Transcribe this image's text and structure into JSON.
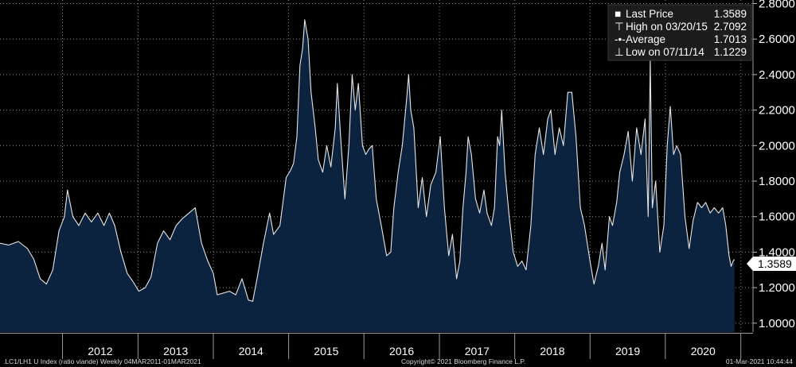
{
  "chart_data": {
    "type": "area",
    "x_start": "2011-03-04",
    "x_end": "2021-03-01",
    "ylim": [
      0.95,
      2.82
    ],
    "grid": true,
    "y_ticks": [
      "1.0000",
      "1.2000",
      "1.4000",
      "1.6000",
      "1.8000",
      "2.0000",
      "2.2000",
      "2.4000",
      "2.6000",
      "2.8000"
    ],
    "x_ticks": [
      "2012",
      "2013",
      "2014",
      "2015",
      "2016",
      "2017",
      "2018",
      "2019",
      "2020"
    ],
    "series": [
      {
        "values": [
          [
            "2011-03-04",
            1.45
          ],
          [
            "2011-04-15",
            1.44
          ],
          [
            "2011-06-01",
            1.46
          ],
          [
            "2011-07-15",
            1.42
          ],
          [
            "2011-08-15",
            1.36
          ],
          [
            "2011-09-15",
            1.25
          ],
          [
            "2011-10-15",
            1.22
          ],
          [
            "2011-11-15",
            1.3
          ],
          [
            "2011-12-15",
            1.52
          ],
          [
            "2012-01-10",
            1.6
          ],
          [
            "2012-01-25",
            1.75
          ],
          [
            "2012-02-20",
            1.6
          ],
          [
            "2012-03-20",
            1.55
          ],
          [
            "2012-04-20",
            1.62
          ],
          [
            "2012-05-20",
            1.57
          ],
          [
            "2012-06-20",
            1.62
          ],
          [
            "2012-07-20",
            1.55
          ],
          [
            "2012-08-15",
            1.62
          ],
          [
            "2012-09-10",
            1.55
          ],
          [
            "2012-10-10",
            1.4
          ],
          [
            "2012-11-10",
            1.28
          ],
          [
            "2012-12-10",
            1.23
          ],
          [
            "2013-01-05",
            1.18
          ],
          [
            "2013-02-05",
            1.2
          ],
          [
            "2013-03-05",
            1.26
          ],
          [
            "2013-04-05",
            1.45
          ],
          [
            "2013-05-05",
            1.52
          ],
          [
            "2013-06-05",
            1.47
          ],
          [
            "2013-07-05",
            1.55
          ],
          [
            "2013-08-05",
            1.59
          ],
          [
            "2013-09-05",
            1.62
          ],
          [
            "2013-10-05",
            1.65
          ],
          [
            "2013-11-05",
            1.45
          ],
          [
            "2013-12-05",
            1.35
          ],
          [
            "2014-01-01",
            1.28
          ],
          [
            "2014-01-20",
            1.16
          ],
          [
            "2014-02-20",
            1.17
          ],
          [
            "2014-03-20",
            1.18
          ],
          [
            "2014-04-20",
            1.16
          ],
          [
            "2014-05-20",
            1.25
          ],
          [
            "2014-06-20",
            1.13
          ],
          [
            "2014-07-11",
            1.1229
          ],
          [
            "2014-08-01",
            1.25
          ],
          [
            "2014-09-01",
            1.45
          ],
          [
            "2014-10-01",
            1.62
          ],
          [
            "2014-10-20",
            1.5
          ],
          [
            "2014-11-20",
            1.55
          ],
          [
            "2014-12-20",
            1.82
          ],
          [
            "2015-01-10",
            1.86
          ],
          [
            "2015-01-25",
            1.9
          ],
          [
            "2015-02-10",
            2.05
          ],
          [
            "2015-02-25",
            2.45
          ],
          [
            "2015-03-10",
            2.55
          ],
          [
            "2015-03-20",
            2.7092
          ],
          [
            "2015-04-05",
            2.6
          ],
          [
            "2015-04-20",
            2.3
          ],
          [
            "2015-05-10",
            2.1
          ],
          [
            "2015-05-25",
            1.92
          ],
          [
            "2015-06-15",
            1.85
          ],
          [
            "2015-07-05",
            2.0
          ],
          [
            "2015-07-25",
            1.88
          ],
          [
            "2015-08-15",
            2.1
          ],
          [
            "2015-08-25",
            2.35
          ],
          [
            "2015-09-10",
            2.05
          ],
          [
            "2015-10-01",
            1.7
          ],
          [
            "2015-10-20",
            2.0
          ],
          [
            "2015-11-05",
            2.4
          ],
          [
            "2015-11-20",
            2.2
          ],
          [
            "2015-12-05",
            2.35
          ],
          [
            "2015-12-25",
            2.0
          ],
          [
            "2016-01-10",
            1.95
          ],
          [
            "2016-01-25",
            1.98
          ],
          [
            "2016-02-10",
            2.0
          ],
          [
            "2016-03-01",
            1.7
          ],
          [
            "2016-03-25",
            1.55
          ],
          [
            "2016-04-20",
            1.38
          ],
          [
            "2016-05-10",
            1.4
          ],
          [
            "2016-05-25",
            1.65
          ],
          [
            "2016-06-15",
            1.85
          ],
          [
            "2016-07-05",
            2.0
          ],
          [
            "2016-07-25",
            2.25
          ],
          [
            "2016-08-05",
            2.4
          ],
          [
            "2016-08-15",
            2.2
          ],
          [
            "2016-08-30",
            2.1
          ],
          [
            "2016-09-20",
            1.65
          ],
          [
            "2016-10-10",
            1.82
          ],
          [
            "2016-10-30",
            1.6
          ],
          [
            "2016-11-20",
            1.78
          ],
          [
            "2016-12-15",
            1.85
          ],
          [
            "2017-01-05",
            2.05
          ],
          [
            "2017-01-25",
            1.65
          ],
          [
            "2017-02-15",
            1.38
          ],
          [
            "2017-03-05",
            1.5
          ],
          [
            "2017-03-25",
            1.25
          ],
          [
            "2017-04-10",
            1.35
          ],
          [
            "2017-04-25",
            1.65
          ],
          [
            "2017-05-10",
            1.85
          ],
          [
            "2017-05-20",
            2.05
          ],
          [
            "2017-06-05",
            1.95
          ],
          [
            "2017-06-25",
            1.7
          ],
          [
            "2017-07-15",
            1.62
          ],
          [
            "2017-08-05",
            1.75
          ],
          [
            "2017-08-20",
            1.62
          ],
          [
            "2017-09-10",
            1.55
          ],
          [
            "2017-09-25",
            1.65
          ],
          [
            "2017-10-10",
            2.05
          ],
          [
            "2017-10-20",
            2.0
          ],
          [
            "2017-10-30",
            2.2
          ],
          [
            "2017-11-15",
            1.85
          ],
          [
            "2017-12-05",
            1.6
          ],
          [
            "2017-12-25",
            1.4
          ],
          [
            "2018-01-15",
            1.32
          ],
          [
            "2018-02-05",
            1.35
          ],
          [
            "2018-02-25",
            1.3
          ],
          [
            "2018-03-20",
            1.55
          ],
          [
            "2018-04-10",
            1.95
          ],
          [
            "2018-04-30",
            2.1
          ],
          [
            "2018-05-20",
            1.95
          ],
          [
            "2018-06-10",
            2.15
          ],
          [
            "2018-06-25",
            2.2
          ],
          [
            "2018-07-15",
            1.95
          ],
          [
            "2018-08-05",
            2.1
          ],
          [
            "2018-08-25",
            2.0
          ],
          [
            "2018-09-15",
            2.3
          ],
          [
            "2018-10-05",
            2.3
          ],
          [
            "2018-10-25",
            2.05
          ],
          [
            "2018-11-15",
            1.65
          ],
          [
            "2018-12-05",
            1.55
          ],
          [
            "2019-01-01",
            1.35
          ],
          [
            "2019-01-20",
            1.22
          ],
          [
            "2019-02-10",
            1.32
          ],
          [
            "2019-02-28",
            1.45
          ],
          [
            "2019-03-15",
            1.3
          ],
          [
            "2019-04-05",
            1.6
          ],
          [
            "2019-04-20",
            1.55
          ],
          [
            "2019-05-10",
            1.68
          ],
          [
            "2019-05-25",
            1.85
          ],
          [
            "2019-06-15",
            1.95
          ],
          [
            "2019-07-05",
            2.08
          ],
          [
            "2019-07-25",
            1.8
          ],
          [
            "2019-08-15",
            2.1
          ],
          [
            "2019-09-05",
            1.95
          ],
          [
            "2019-09-25",
            2.15
          ],
          [
            "2019-10-10",
            1.6
          ],
          [
            "2019-10-20",
            2.48
          ],
          [
            "2019-10-30",
            1.65
          ],
          [
            "2019-11-15",
            1.8
          ],
          [
            "2019-12-05",
            1.4
          ],
          [
            "2019-12-25",
            1.55
          ],
          [
            "2020-01-10",
            2.0
          ],
          [
            "2020-01-25",
            2.22
          ],
          [
            "2020-02-10",
            1.95
          ],
          [
            "2020-02-25",
            2.0
          ],
          [
            "2020-03-15",
            1.95
          ],
          [
            "2020-04-05",
            1.6
          ],
          [
            "2020-04-25",
            1.42
          ],
          [
            "2020-05-15",
            1.58
          ],
          [
            "2020-06-05",
            1.68
          ],
          [
            "2020-06-25",
            1.65
          ],
          [
            "2020-07-15",
            1.68
          ],
          [
            "2020-08-05",
            1.62
          ],
          [
            "2020-08-25",
            1.65
          ],
          [
            "2020-09-15",
            1.62
          ],
          [
            "2020-10-05",
            1.65
          ],
          [
            "2020-10-20",
            1.55
          ],
          [
            "2020-11-05",
            1.38
          ],
          [
            "2020-11-15",
            1.32
          ],
          [
            "2020-11-25",
            1.35
          ],
          [
            "2020-12-01",
            1.3589
          ]
        ]
      }
    ],
    "last_value_label": "1.3589",
    "legend": [
      {
        "marker": "■",
        "label": "Last Price",
        "value": "1.3589"
      },
      {
        "marker": "⊤",
        "label": "High on 03/20/15",
        "value": "2.7092"
      },
      {
        "marker": "-•-",
        "label": "Average",
        "value": "1.7013"
      },
      {
        "marker": "⊥",
        "label": "Low on 07/11/14",
        "value": "1.1229"
      }
    ],
    "colors": {
      "fill": "#0c2340",
      "line": "#e6e6e6",
      "grid": "#8a8a8a",
      "background": "#000000",
      "legend_bg": "#1c1c1c"
    }
  },
  "footer": {
    "left": ".LC1/LH1 U Index (ratio viande)  Weekly 04MAR2011-01MAR2021",
    "center": "Copyright© 2021 Bloomberg Finance L.P.",
    "right": "01-Mar-2021 10:44:44"
  }
}
